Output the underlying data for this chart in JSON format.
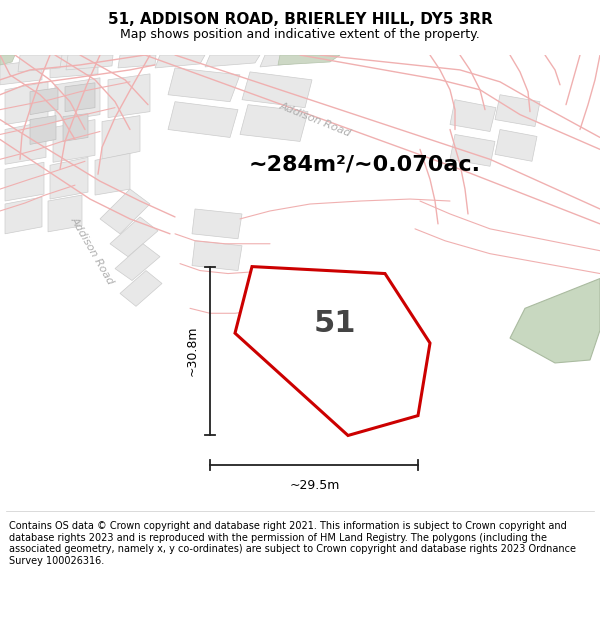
{
  "title_line1": "51, ADDISON ROAD, BRIERLEY HILL, DY5 3RR",
  "title_line2": "Map shows position and indicative extent of the property.",
  "area_text": "~284m²/~0.070ac.",
  "property_number": "51",
  "dim_height": "~30.8m",
  "dim_width": "~29.5m",
  "road_label_1": "Addison Road",
  "road_label_2": "Addison Road",
  "footer_text": "Contains OS data © Crown copyright and database right 2021. This information is subject to Crown copyright and database rights 2023 and is reproduced with the permission of HM Land Registry. The polygons (including the associated geometry, namely x, y co-ordinates) are subject to Crown copyright and database rights 2023 Ordnance Survey 100026316.",
  "bg_color": "#ffffff",
  "map_bg_color": "#ffffff",
  "block_color": "#e8e8e8",
  "block_edge": "#cccccc",
  "road_line_color": "#f0b0b0",
  "property_fill": "#ffffff",
  "property_edge": "#cc0000",
  "green_area": "#c8d8c0",
  "green_edge": "#aabba0",
  "dim_line_color": "#222222",
  "title_fontsize": 11,
  "subtitle_fontsize": 9,
  "area_fontsize": 16,
  "footer_fontsize": 7,
  "road_label_color": "#b0b0b0",
  "prop_label_color": "#555555"
}
